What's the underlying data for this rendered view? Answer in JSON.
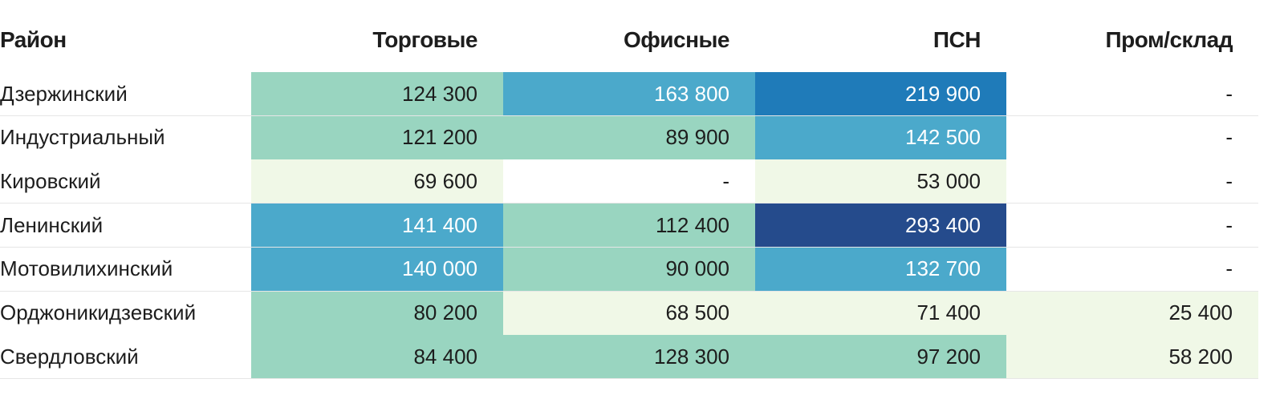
{
  "table": {
    "header": [
      "Район",
      "Торговые",
      "Офисные",
      "ПСН",
      "Пром/склад"
    ],
    "rows": [
      [
        "Дзержинский",
        "124 300",
        "163 800",
        "219 900",
        "-"
      ],
      [
        "Индустриальный",
        "121 200",
        "89 900",
        "142 500",
        "-"
      ],
      [
        "Кировский",
        "69 600",
        "-",
        "53 000",
        "-"
      ],
      [
        "Ленинский",
        "141 400",
        "112 400",
        "293 400",
        "-"
      ],
      [
        "Мотовилихинский",
        "140 000",
        "90 000",
        "132 700",
        "-"
      ],
      [
        "Орджоникидзевский",
        "80 200",
        "68 500",
        "71 400",
        "25 400"
      ],
      [
        "Свердловский",
        "84 400",
        "128 300",
        "97 200",
        "58 200"
      ]
    ],
    "cell_colors": [
      [
        "#ffffff",
        "#99d5c0",
        "#4ba9cb",
        "#1f7bb9",
        "#ffffff"
      ],
      [
        "#ffffff",
        "#99d5c0",
        "#99d5c0",
        "#4ba9cb",
        "#ffffff"
      ],
      [
        "#ffffff",
        "#f0f8e7",
        "#ffffff",
        "#f0f8e7",
        "#ffffff"
      ],
      [
        "#ffffff",
        "#4ba9cb",
        "#99d5c0",
        "#254b8c",
        "#ffffff"
      ],
      [
        "#ffffff",
        "#4ba9cb",
        "#99d5c0",
        "#4ba9cb",
        "#ffffff"
      ],
      [
        "#ffffff",
        "#99d5c0",
        "#f0f8e7",
        "#f0f8e7",
        "#f0f8e7"
      ],
      [
        "#ffffff",
        "#99d5c0",
        "#99d5c0",
        "#99d5c0",
        "#f0f8e7"
      ]
    ]
  }
}
